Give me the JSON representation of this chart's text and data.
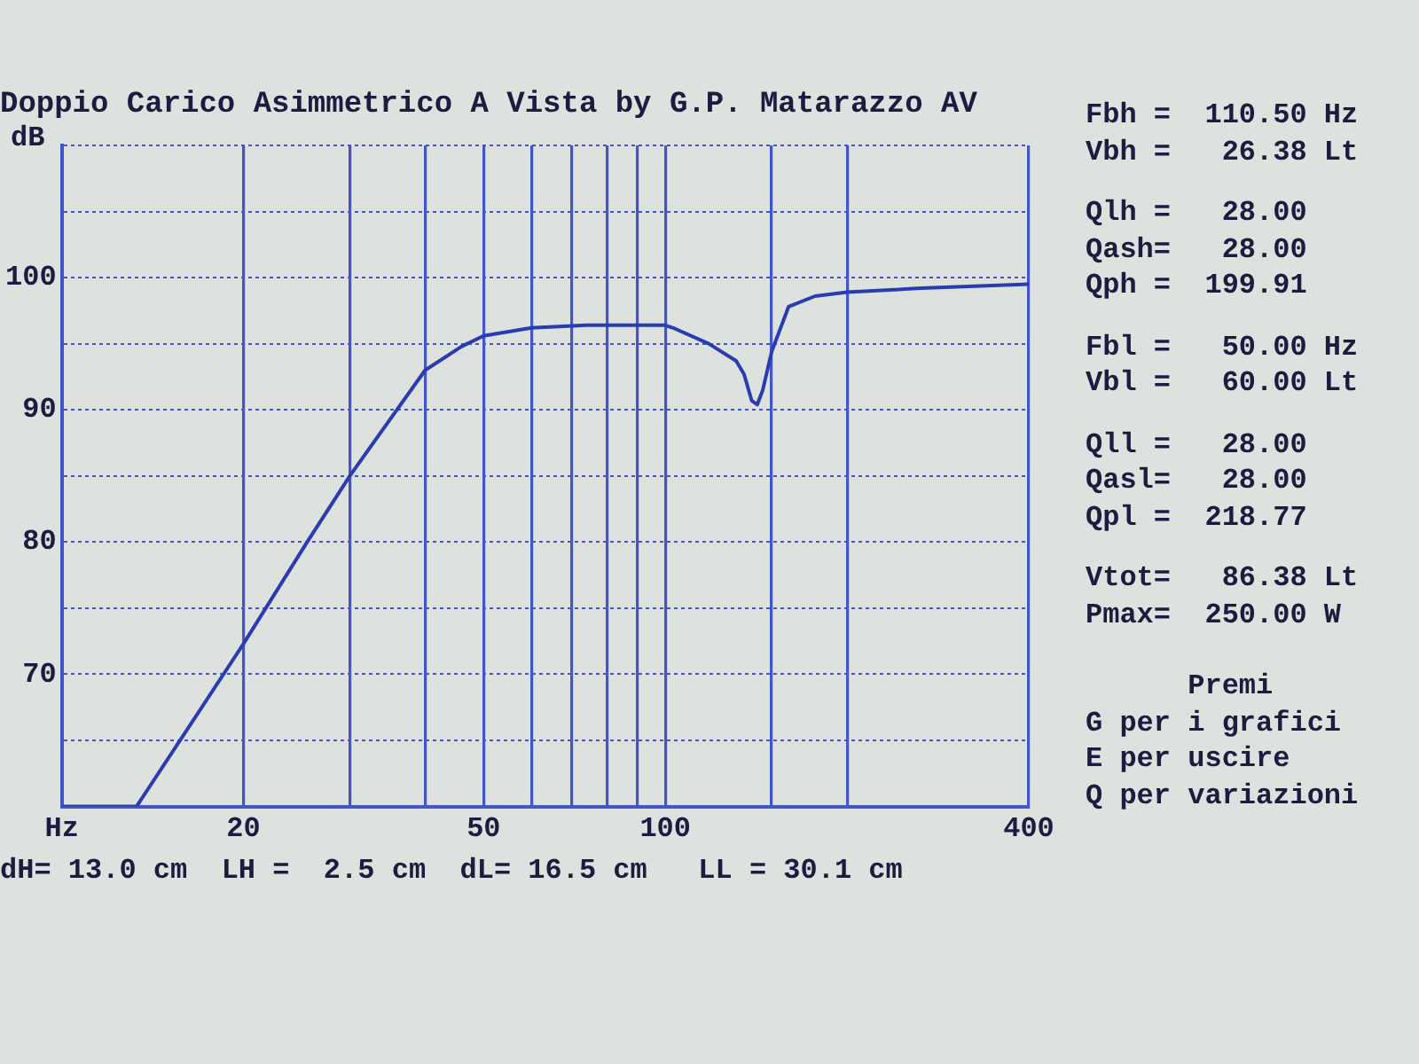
{
  "chart_data": {
    "type": "line",
    "title": "Doppio Carico Asimmetrico A Vista by G.P. Matarazzo AV",
    "ylabel": "dB",
    "x": [
      10,
      13.3,
      15.7,
      20,
      25.5,
      30,
      40,
      46,
      50,
      60,
      74,
      100,
      103,
      118,
      131,
      135,
      139,
      142,
      145,
      150,
      160,
      177,
      200,
      265,
      400
    ],
    "series": [
      {
        "color": "#2a3cb0",
        "values": [
          60,
          60,
          65,
          72.3,
          80,
          85,
          93,
          94.8,
          95.6,
          96.2,
          96.4,
          96.4,
          96.2,
          95,
          93.7,
          92.7,
          90.7,
          90.4,
          91.5,
          94.4,
          97.8,
          98.6,
          98.9,
          99.2,
          99.5
        ]
      }
    ],
    "log": "x",
    "xlim": [
      10,
      400
    ],
    "xticks": [
      {
        "value": 10,
        "label": "Hz"
      },
      20,
      {
        "value": 30,
        "label": null
      },
      {
        "value": 40,
        "label": null
      },
      50,
      {
        "value": 60,
        "label": null
      },
      {
        "value": 70,
        "label": null
      },
      {
        "value": 80,
        "label": null
      },
      {
        "value": 90,
        "label": null
      },
      100,
      {
        "value": 150,
        "label": null
      },
      {
        "value": 200,
        "label": null
      },
      400
    ],
    "ylim": [
      60,
      110
    ],
    "yticks": [
      {
        "value": 60,
        "label": null
      },
      {
        "value": 65,
        "label": null
      },
      70,
      {
        "value": 75,
        "label": null
      },
      80,
      {
        "value": 85,
        "label": null
      },
      90,
      {
        "value": 95,
        "label": null
      },
      100,
      {
        "value": 105,
        "label": null
      },
      {
        "value": 110,
        "label": null
      }
    ],
    "grid": true,
    "marker": "none",
    "line_style": "solid",
    "annotations": [
      "Fbh =  110.50 Hz",
      "Vbh =   26.38 Lt",
      "Qlh =   28.00",
      "Qash=   28.00",
      "Qph =  199.91",
      "Fbl =   50.00 Hz",
      "Vbl =   60.00 Lt",
      "Qll =   28.00",
      "Qasl=   28.00",
      "Qpl =  218.77",
      "Vtot=   86.38 Lt",
      "Pmax=  250.00 W",
      "      Premi",
      "G per i grafici",
      "E per uscire",
      "Q per variazioni",
      "dH= 13.0 cm  LH =  2.5 cm  dL= 16.5 cm   LL = 30.1 cm"
    ]
  }
}
